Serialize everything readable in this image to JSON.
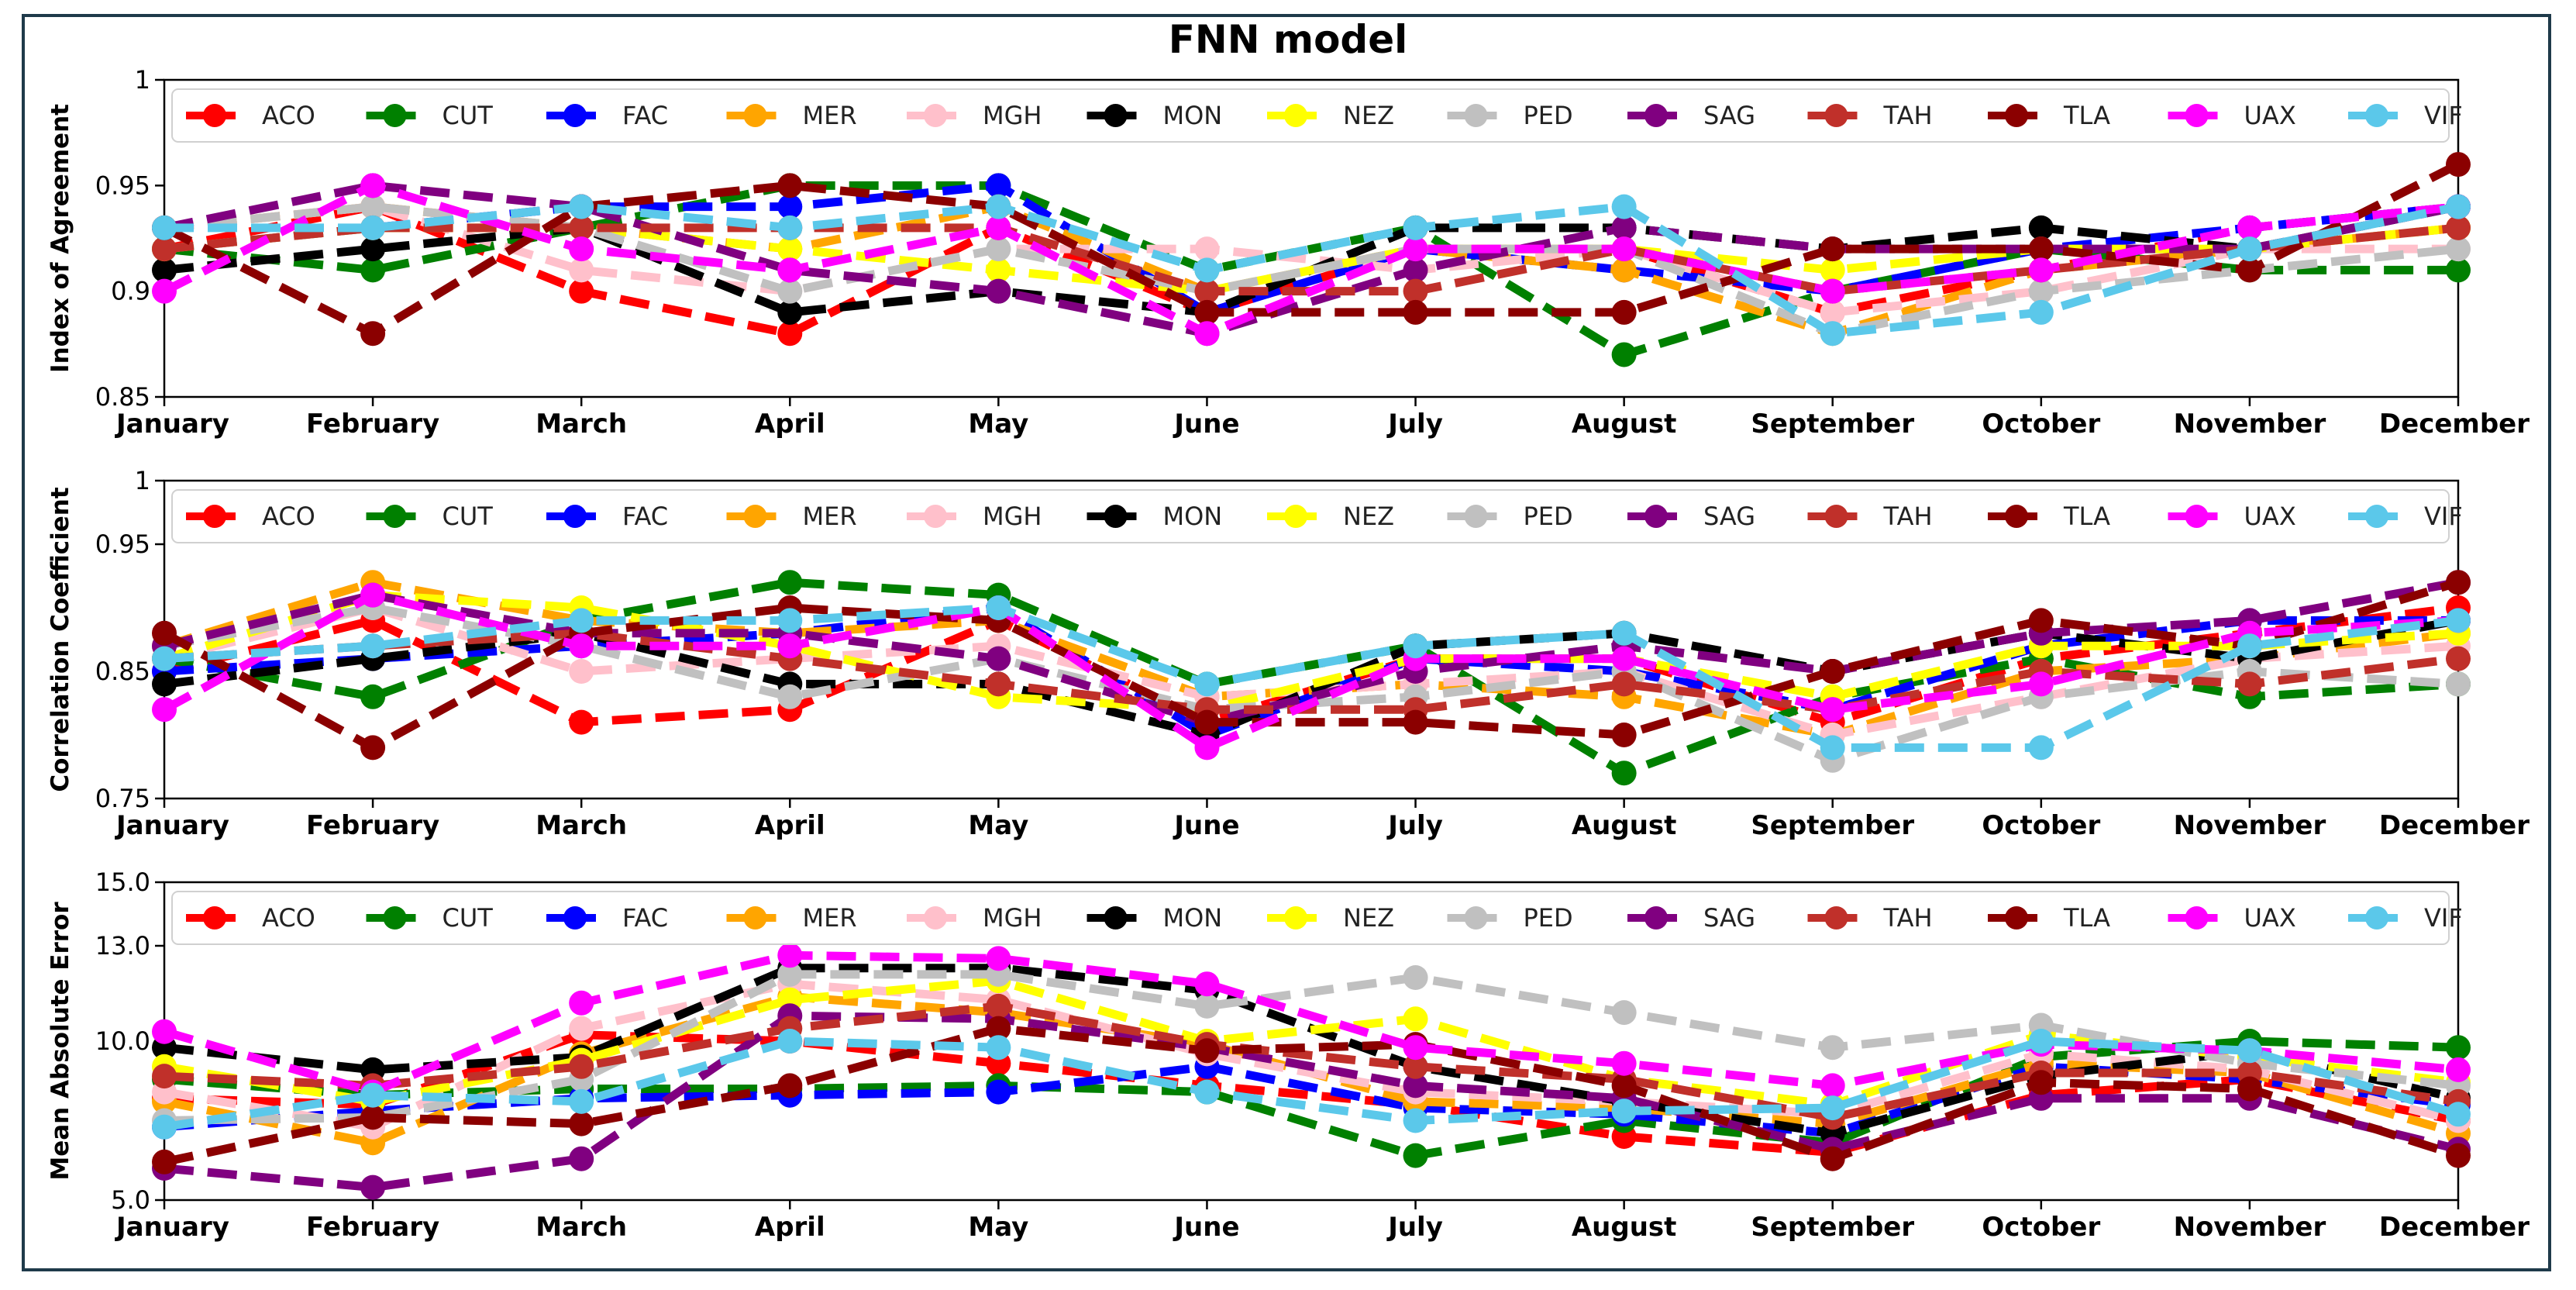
{
  "title": "FNN model",
  "months": [
    "January",
    "February",
    "March",
    "April",
    "May",
    "June",
    "July",
    "August",
    "September",
    "October",
    "November",
    "December"
  ],
  "stations": [
    {
      "name": "ACO",
      "color": "#ff0000"
    },
    {
      "name": "CUT",
      "color": "#008000"
    },
    {
      "name": "FAC",
      "color": "#0000ff"
    },
    {
      "name": "MER",
      "color": "#ffa500"
    },
    {
      "name": "MGH",
      "color": "#ffc0cb"
    },
    {
      "name": "MON",
      "color": "#000000"
    },
    {
      "name": "NEZ",
      "color": "#ffff00"
    },
    {
      "name": "PED",
      "color": "#c0c0c0"
    },
    {
      "name": "SAG",
      "color": "#800080"
    },
    {
      "name": "TAH",
      "color": "#c0302a"
    },
    {
      "name": "TLA",
      "color": "#8b0000"
    },
    {
      "name": "UAX",
      "color": "#ff00ff"
    },
    {
      "name": "VIF",
      "color": "#5bc8ea"
    }
  ],
  "chart_data": [
    {
      "type": "line",
      "title": "FNN model",
      "xlabel": "",
      "ylabel": "Index of Agreement",
      "categories": [
        "January",
        "February",
        "March",
        "April",
        "May",
        "June",
        "July",
        "August",
        "September",
        "October",
        "November",
        "December"
      ],
      "ylim": [
        0.85,
        1.0
      ],
      "yticks": [
        0.85,
        0.9,
        0.95,
        1.0
      ],
      "ytick_labels": [
        "0.85",
        "0.9",
        "0.95",
        "1"
      ],
      "legend": "top",
      "series": [
        {
          "name": "ACO",
          "values": [
            0.92,
            0.94,
            0.9,
            0.88,
            0.93,
            0.89,
            0.92,
            0.92,
            0.89,
            0.91,
            0.93,
            0.94
          ]
        },
        {
          "name": "CUT",
          "values": [
            0.92,
            0.91,
            0.93,
            0.95,
            0.95,
            0.91,
            0.93,
            0.87,
            0.9,
            0.92,
            0.91,
            0.91
          ]
        },
        {
          "name": "FAC",
          "values": [
            0.92,
            0.93,
            0.94,
            0.94,
            0.95,
            0.89,
            0.92,
            0.91,
            0.9,
            0.92,
            0.93,
            0.94
          ]
        },
        {
          "name": "MER",
          "values": [
            0.93,
            0.94,
            0.93,
            0.92,
            0.94,
            0.9,
            0.92,
            0.91,
            0.88,
            0.91,
            0.92,
            0.93
          ]
        },
        {
          "name": "MGH",
          "values": [
            0.93,
            0.94,
            0.91,
            0.9,
            0.92,
            0.92,
            0.91,
            0.92,
            0.89,
            0.9,
            0.92,
            0.92
          ]
        },
        {
          "name": "MON",
          "values": [
            0.91,
            0.92,
            0.93,
            0.89,
            0.9,
            0.89,
            0.93,
            0.93,
            0.92,
            0.93,
            0.92,
            0.94
          ]
        },
        {
          "name": "NEZ",
          "values": [
            0.92,
            0.93,
            0.93,
            0.92,
            0.91,
            0.9,
            0.92,
            0.92,
            0.91,
            0.92,
            0.92,
            0.93
          ]
        },
        {
          "name": "PED",
          "values": [
            0.93,
            0.94,
            0.93,
            0.9,
            0.92,
            0.9,
            0.92,
            0.92,
            0.88,
            0.9,
            0.91,
            0.92
          ]
        },
        {
          "name": "SAG",
          "values": [
            0.93,
            0.95,
            0.94,
            0.91,
            0.9,
            0.88,
            0.91,
            0.93,
            0.92,
            0.92,
            0.92,
            0.94
          ]
        },
        {
          "name": "TAH",
          "values": [
            0.92,
            0.93,
            0.93,
            0.93,
            0.93,
            0.9,
            0.9,
            0.92,
            0.9,
            0.91,
            0.92,
            0.93
          ]
        },
        {
          "name": "TLA",
          "values": [
            0.93,
            0.88,
            0.94,
            0.95,
            0.94,
            0.89,
            0.89,
            0.89,
            0.92,
            0.92,
            0.91,
            0.96
          ]
        },
        {
          "name": "UAX",
          "values": [
            0.9,
            0.95,
            0.92,
            0.91,
            0.93,
            0.88,
            0.92,
            0.92,
            0.9,
            0.91,
            0.93,
            0.94
          ]
        },
        {
          "name": "VIF",
          "values": [
            0.93,
            0.93,
            0.94,
            0.93,
            0.94,
            0.91,
            0.93,
            0.94,
            0.88,
            0.89,
            0.92,
            0.94
          ]
        }
      ]
    },
    {
      "type": "line",
      "xlabel": "",
      "ylabel": "Correlation Coefficient",
      "categories": [
        "January",
        "February",
        "March",
        "April",
        "May",
        "June",
        "July",
        "August",
        "September",
        "October",
        "November",
        "December"
      ],
      "ylim": [
        0.75,
        1.0
      ],
      "yticks": [
        0.75,
        0.85,
        0.95,
        1.0
      ],
      "ytick_labels": [
        "0.75",
        "0.85",
        "0.95",
        "1"
      ],
      "legend": "top",
      "series": [
        {
          "name": "ACO",
          "values": [
            0.85,
            0.89,
            0.81,
            0.82,
            0.89,
            0.81,
            0.86,
            0.86,
            0.81,
            0.86,
            0.88,
            0.9
          ]
        },
        {
          "name": "CUT",
          "values": [
            0.86,
            0.83,
            0.89,
            0.92,
            0.91,
            0.84,
            0.87,
            0.77,
            0.83,
            0.86,
            0.83,
            0.84
          ]
        },
        {
          "name": "FAC",
          "values": [
            0.85,
            0.86,
            0.87,
            0.88,
            0.9,
            0.8,
            0.86,
            0.85,
            0.82,
            0.87,
            0.89,
            0.89
          ]
        },
        {
          "name": "MER",
          "values": [
            0.87,
            0.92,
            0.89,
            0.88,
            0.89,
            0.83,
            0.84,
            0.83,
            0.8,
            0.85,
            0.86,
            0.88
          ]
        },
        {
          "name": "MGH",
          "values": [
            0.86,
            0.9,
            0.85,
            0.86,
            0.87,
            0.83,
            0.84,
            0.85,
            0.8,
            0.83,
            0.86,
            0.87
          ]
        },
        {
          "name": "MON",
          "values": [
            0.84,
            0.86,
            0.88,
            0.84,
            0.84,
            0.8,
            0.87,
            0.88,
            0.85,
            0.88,
            0.86,
            0.89
          ]
        },
        {
          "name": "NEZ",
          "values": [
            0.86,
            0.91,
            0.9,
            0.87,
            0.83,
            0.82,
            0.86,
            0.86,
            0.83,
            0.87,
            0.87,
            0.88
          ]
        },
        {
          "name": "PED",
          "values": [
            0.87,
            0.9,
            0.87,
            0.83,
            0.86,
            0.82,
            0.83,
            0.85,
            0.78,
            0.83,
            0.85,
            0.84
          ]
        },
        {
          "name": "SAG",
          "values": [
            0.87,
            0.91,
            0.88,
            0.88,
            0.86,
            0.81,
            0.85,
            0.87,
            0.85,
            0.88,
            0.89,
            0.92
          ]
        },
        {
          "name": "TAH",
          "values": [
            0.86,
            0.87,
            0.88,
            0.86,
            0.84,
            0.82,
            0.82,
            0.84,
            0.82,
            0.85,
            0.84,
            0.86
          ]
        },
        {
          "name": "TLA",
          "values": [
            0.88,
            0.79,
            0.88,
            0.9,
            0.89,
            0.81,
            0.81,
            0.8,
            0.85,
            0.89,
            0.87,
            0.92
          ]
        },
        {
          "name": "UAX",
          "values": [
            0.82,
            0.91,
            0.87,
            0.87,
            0.9,
            0.79,
            0.86,
            0.86,
            0.82,
            0.84,
            0.88,
            0.89
          ]
        },
        {
          "name": "VIF",
          "values": [
            0.86,
            0.87,
            0.89,
            0.89,
            0.9,
            0.84,
            0.87,
            0.88,
            0.79,
            0.79,
            0.87,
            0.89
          ]
        }
      ]
    },
    {
      "type": "line",
      "xlabel": "",
      "ylabel": "Mean Absolute Error",
      "categories": [
        "January",
        "February",
        "March",
        "April",
        "May",
        "June",
        "July",
        "August",
        "September",
        "October",
        "November",
        "December"
      ],
      "ylim": [
        5.0,
        15.0
      ],
      "yticks": [
        5.0,
        10.0,
        13.0,
        15.0
      ],
      "ytick_labels": [
        "5.0",
        "10.0",
        "13.0",
        "15.0"
      ],
      "legend": "top",
      "series": [
        {
          "name": "ACO",
          "values": [
            8.2,
            8.0,
            10.2,
            10.0,
            9.3,
            8.6,
            8.0,
            7.0,
            6.5,
            8.3,
            8.8,
            7.5
          ]
        },
        {
          "name": "CUT",
          "values": [
            8.8,
            8.3,
            8.5,
            8.5,
            8.6,
            8.4,
            6.4,
            7.5,
            6.8,
            9.5,
            10.0,
            9.8
          ]
        },
        {
          "name": "FAC",
          "values": [
            7.3,
            7.8,
            8.2,
            8.3,
            8.4,
            9.2,
            7.9,
            7.7,
            7.1,
            9.2,
            8.8,
            8.0
          ]
        },
        {
          "name": "MER",
          "values": [
            8.1,
            6.8,
            9.6,
            11.4,
            10.9,
            9.9,
            8.1,
            7.9,
            7.4,
            9.3,
            9.0,
            7.1
          ]
        },
        {
          "name": "MGH",
          "values": [
            8.4,
            7.3,
            10.4,
            11.8,
            11.3,
            9.6,
            8.4,
            8.1,
            7.7,
            9.6,
            9.1,
            7.5
          ]
        },
        {
          "name": "MON",
          "values": [
            9.8,
            9.1,
            9.5,
            12.3,
            12.3,
            11.6,
            9.2,
            8.1,
            7.1,
            8.9,
            9.7,
            8.2
          ]
        },
        {
          "name": "NEZ",
          "values": [
            9.2,
            8.1,
            9.4,
            11.3,
            11.9,
            10.0,
            10.7,
            8.8,
            8.0,
            10.2,
            9.5,
            8.7
          ]
        },
        {
          "name": "PED",
          "values": [
            7.5,
            7.6,
            8.8,
            12.1,
            12.1,
            11.1,
            12.0,
            10.9,
            9.8,
            10.5,
            9.3,
            8.6
          ]
        },
        {
          "name": "SAG",
          "values": [
            6.0,
            5.4,
            6.3,
            10.8,
            10.7,
            9.8,
            8.6,
            8.2,
            6.6,
            8.2,
            8.2,
            6.6
          ]
        },
        {
          "name": "TAH",
          "values": [
            8.9,
            8.6,
            9.2,
            10.4,
            11.1,
            9.9,
            9.2,
            8.8,
            7.6,
            9.0,
            9.0,
            8.1
          ]
        },
        {
          "name": "TLA",
          "values": [
            6.2,
            7.6,
            7.4,
            8.6,
            10.4,
            9.7,
            9.9,
            8.6,
            6.3,
            8.7,
            8.5,
            6.4
          ]
        },
        {
          "name": "UAX",
          "values": [
            10.3,
            8.4,
            11.2,
            12.7,
            12.6,
            11.8,
            9.8,
            9.3,
            8.6,
            9.9,
            9.7,
            9.1
          ]
        },
        {
          "name": "VIF",
          "values": [
            7.3,
            8.3,
            8.1,
            10.0,
            9.8,
            8.4,
            7.5,
            7.8,
            7.9,
            10.0,
            9.7,
            7.7
          ]
        }
      ]
    }
  ]
}
